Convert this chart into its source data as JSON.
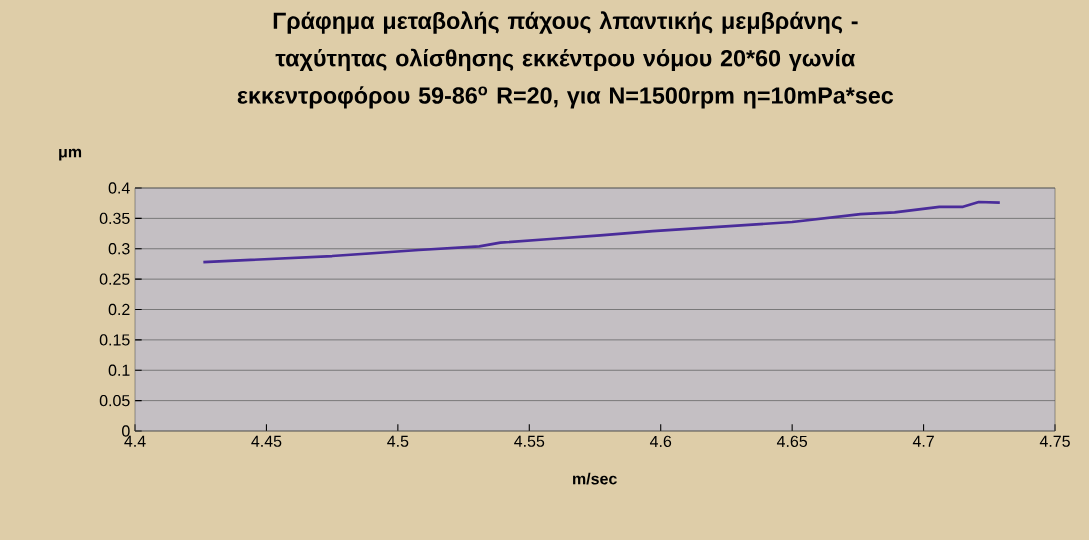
{
  "chart_data": {
    "type": "line",
    "title": "Γράφημα μεταβολής πάχους λπαντικής μεμβράνης - ταχύτητας ολίσθησης εκκέντρου νόμου 20*60 γωνία εκκεντροφόρου 59-86$^{o}$ R=20, για N=1500rpm η=10mPa*sec",
    "xlabel": "m/sec",
    "ylabel": "μm",
    "series": [
      {
        "color": "#4a2c9a",
        "x": [
          4.426,
          4.475,
          4.508,
          4.531,
          4.539,
          4.558,
          4.577,
          4.597,
          4.65,
          4.676,
          4.689,
          4.706,
          4.715,
          4.721,
          4.729
        ],
        "values": [
          0.278,
          0.288,
          0.298,
          0.304,
          0.31,
          0.316,
          0.322,
          0.329,
          0.344,
          0.357,
          0.36,
          0.369,
          0.369,
          0.377,
          0.376
        ]
      }
    ],
    "xlim": [
      4.4,
      4.75
    ],
    "xticks": [
      4.4,
      4.45,
      4.5,
      4.55,
      4.6,
      4.65,
      4.7,
      4.75
    ],
    "ylim": [
      0,
      0.4
    ],
    "yticks": [
      0,
      0.05,
      0.1,
      0.15,
      0.2,
      0.25,
      0.3,
      0.35,
      0.4
    ],
    "grid": "y",
    "marker": "none",
    "line_style": "solid"
  }
}
